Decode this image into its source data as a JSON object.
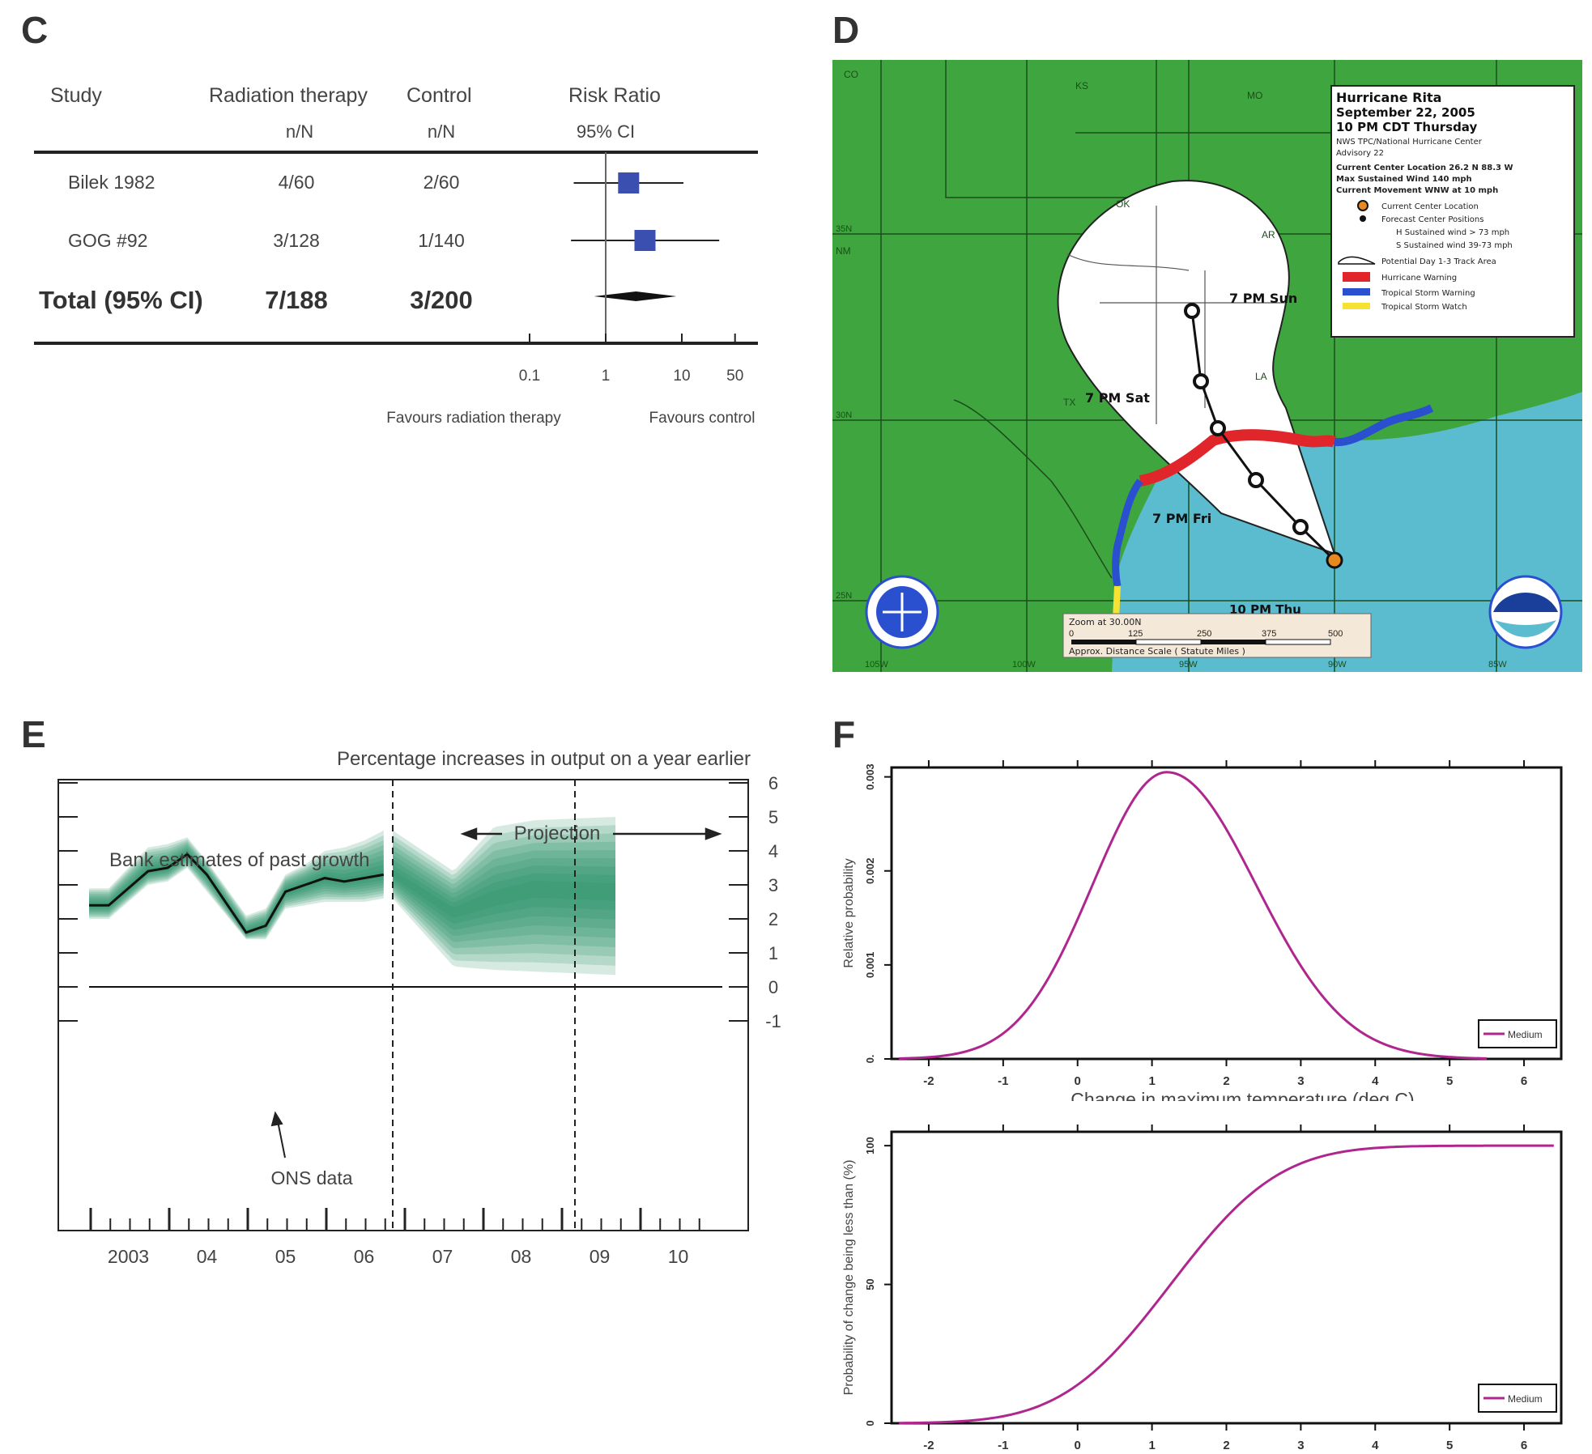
{
  "panels": {
    "c": {
      "label": "C"
    },
    "d": {
      "label": "D"
    },
    "e": {
      "label": "E"
    },
    "f": {
      "label": "F"
    }
  },
  "forest": {
    "headers": {
      "study": "Study",
      "treatment": "Radiation therapy",
      "control": "Control",
      "effect": "Risk Ratio",
      "treatment_sub": "n/N",
      "control_sub": "n/N",
      "effect_sub": "95% CI"
    },
    "rows": [
      {
        "study": "Bilek 1982",
        "treatment": "4/60",
        "control": "2/60",
        "rr": 2.0,
        "lo": 0.38,
        "hi": 10.5,
        "weight": 0.5
      },
      {
        "study": "GOG #92",
        "treatment": "3/128",
        "control": "1/140",
        "rr": 3.28,
        "lo": 0.35,
        "hi": 31.0,
        "weight": 0.45
      }
    ],
    "total": {
      "study": "Total (95% CI)",
      "treatment": "7/188",
      "control": "3/200",
      "rr": 2.5,
      "lo": 0.7,
      "hi": 8.5
    },
    "axis_ticks": [
      {
        "v": 0.1,
        "label": "0.1"
      },
      {
        "v": 1,
        "label": "1"
      },
      {
        "v": 10,
        "label": "10"
      },
      {
        "v": 50,
        "label": "50"
      }
    ],
    "favours_left": "Favours radiation therapy",
    "favours_right": "Favours control"
  },
  "map": {
    "title": "Hurricane Rita",
    "date": "September 22, 2005",
    "time": "10 PM CDT Thursday",
    "advisory_source": "NWS TPC/National Hurricane Center",
    "advisory": "Advisory 22",
    "center_location": "Current Center Location 26.2 N 88.3 W",
    "max_wind": "Max Sustained Wind 140 mph",
    "movement": "Current Movement WNW at 10 mph",
    "legend": [
      {
        "label": "Current Center Location",
        "icon": "orange-dot"
      },
      {
        "label": "Forecast Center Positions",
        "icon": "black-dot"
      },
      {
        "label": "H Sustained wind > 73 mph",
        "icon": "none"
      },
      {
        "label": "S Sustained wind 39-73 mph",
        "icon": "none"
      },
      {
        "label": "Potential Day 1-3 Track Area",
        "icon": "cone"
      },
      {
        "label": "Hurricane Warning",
        "icon": "#e0262b"
      },
      {
        "label": "Tropical Storm Warning",
        "icon": "#2a4fcf"
      },
      {
        "label": "Tropical Storm Watch",
        "icon": "#f5e232"
      }
    ],
    "track_labels": {
      "sun": "7 PM Sun",
      "sat": "7 PM Sat",
      "fri": "7 PM Fri",
      "thu": "10 PM Thu"
    },
    "states": {
      "co": "CO",
      "ks": "KS",
      "mo": "MO",
      "ok": "OK",
      "ar": "AR",
      "tx": "TX",
      "la": "LA",
      "nm": "NM"
    },
    "lat_labels": [
      "35N",
      "30N",
      "25N"
    ],
    "lon_labels": [
      "105W",
      "100W",
      "95W",
      "90W",
      "85W"
    ],
    "scale_title": "Zoom at 30.00N",
    "scale_ticks": [
      "0",
      "125",
      "250",
      "375",
      "500"
    ],
    "scale_footer": "Approx. Distance Scale ( Statute Miles )",
    "colors": {
      "land": "#3fa63f",
      "water": "#5bbcd0",
      "cone": "#ffffff",
      "hurricane_warning": "#e0262b",
      "ts_warning": "#2a4fcf",
      "ts_watch": "#f5e232"
    }
  },
  "fan": {
    "title": "Percentage increases in output on a year earlier",
    "annotation_past": "Bank estimates of past growth",
    "annotation_projection": "Projection",
    "annotation_ons": "ONS data",
    "x_labels": [
      "2003",
      "04",
      "05",
      "06",
      "07",
      "08",
      "09",
      "10"
    ],
    "y_ticks": [
      "6",
      "5",
      "4",
      "3",
      "2",
      "1",
      "0",
      "-1"
    ],
    "ylim": [
      -1,
      6
    ],
    "color": "#1a8a5e",
    "ons_t": [
      0,
      0.25,
      0.75,
      1.0,
      1.25,
      1.5,
      2.0,
      2.25,
      2.5,
      2.75,
      3.0,
      3.25,
      3.5,
      3.75
    ],
    "ons_v": [
      2.4,
      2.4,
      3.4,
      3.5,
      3.9,
      3.3,
      1.6,
      1.8,
      2.8,
      3.0,
      3.2,
      3.1,
      3.2,
      3.3
    ],
    "fan_t": [
      3.75,
      4.5,
      5.0,
      5.5,
      6.5
    ],
    "fan_center": [
      3.3,
      2.2,
      2.6,
      2.9,
      2.8
    ],
    "fan_outer_hi": [
      4.6,
      3.4,
      4.7,
      4.9,
      5.0
    ],
    "fan_outer_lo": [
      2.6,
      0.6,
      0.5,
      0.45,
      0.35
    ],
    "past_outer_hi": [
      2.9,
      2.9,
      4.1,
      4.2,
      4.4,
      3.7,
      2.1,
      2.3,
      3.3,
      3.6,
      4.0,
      4.1,
      4.3,
      4.6
    ],
    "past_outer_lo": [
      2.0,
      2.0,
      3.0,
      3.1,
      3.5,
      2.8,
      1.4,
      1.4,
      2.3,
      2.4,
      2.5,
      2.5,
      2.5,
      2.6
    ],
    "dashed_lines_t": [
      3.75,
      6.0
    ]
  },
  "chart_data": [
    {
      "type": "line",
      "title": "",
      "xlabel": "Change in maximum temperature (deg C)",
      "ylabel": "Relative probability",
      "xlim": [
        -2.5,
        6.5
      ],
      "ylim": [
        0,
        0.0031
      ],
      "x_ticks": [
        -2,
        -1,
        0,
        1,
        2,
        3,
        4,
        5,
        6
      ],
      "y_ticks": [
        {
          "v": 0,
          "label": "0."
        },
        {
          "v": 0.001,
          "label": "0.001"
        },
        {
          "v": 0.002,
          "label": "0.002"
        },
        {
          "v": 0.003,
          "label": "0.003"
        }
      ],
      "distribution": {
        "mean": 1.2,
        "sd_left": 1.0,
        "sd_right": 1.2,
        "peak": 0.00305,
        "x_start": -2.4,
        "x_end": 5.5
      },
      "series": [
        {
          "name": "Medium",
          "color": "#b0268f"
        }
      ],
      "legend_position": "bottom-right"
    },
    {
      "type": "line",
      "title": "",
      "xlabel": "",
      "ylabel": "Probability of change being less than (%)",
      "xlim": [
        -2.5,
        6.5
      ],
      "ylim": [
        0,
        105
      ],
      "x_ticks": [
        -2,
        -1,
        0,
        1,
        2,
        3,
        4,
        5,
        6
      ],
      "y_ticks": [
        {
          "v": 0,
          "label": "0"
        },
        {
          "v": 50,
          "label": "50"
        },
        {
          "v": 100,
          "label": "100"
        }
      ],
      "distribution": {
        "x_start": -2.4,
        "x_end": 6.4
      },
      "series": [
        {
          "name": "Medium",
          "color": "#b0268f"
        }
      ],
      "legend_position": "bottom-right"
    }
  ]
}
